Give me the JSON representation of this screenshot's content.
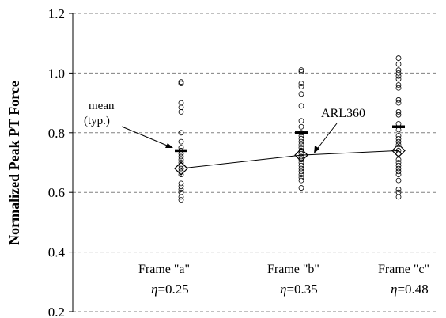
{
  "chart_data": {
    "type": "scatter",
    "ylabel": "Normalized Peak PT Force",
    "ylim": [
      0.2,
      1.2
    ],
    "yticks": [
      "0.2",
      "0.4",
      "0.6",
      "0.8",
      "1.0",
      "1.2"
    ],
    "grid": "horizontal-dashed",
    "groups": [
      {
        "label": "Frame \"a\"",
        "eta_symbol": "η",
        "eta_value": "=0.25",
        "points": [
          0.97,
          0.965,
          0.9,
          0.885,
          0.87,
          0.8,
          0.77,
          0.75,
          0.74,
          0.73,
          0.72,
          0.71,
          0.7,
          0.69,
          0.68,
          0.67,
          0.66,
          0.63,
          0.62,
          0.61,
          0.6,
          0.585,
          0.575
        ],
        "mean": 0.74,
        "arl360": 0.68
      },
      {
        "label": "Frame \"b\"",
        "eta_symbol": "η",
        "eta_value": "=0.35",
        "points": [
          1.01,
          1.005,
          0.965,
          0.955,
          0.93,
          0.89,
          0.84,
          0.82,
          0.8,
          0.79,
          0.78,
          0.77,
          0.76,
          0.75,
          0.74,
          0.73,
          0.72,
          0.71,
          0.7,
          0.69,
          0.68,
          0.67,
          0.66,
          0.65,
          0.64,
          0.615
        ],
        "mean": 0.8,
        "arl360": 0.725
      },
      {
        "label": "Frame \"c\"",
        "eta_symbol": "η",
        "eta_value": "=0.48",
        "points": [
          1.05,
          1.03,
          1.01,
          1.0,
          0.99,
          0.98,
          0.96,
          0.95,
          0.91,
          0.9,
          0.87,
          0.86,
          0.83,
          0.81,
          0.79,
          0.78,
          0.77,
          0.76,
          0.74,
          0.73,
          0.71,
          0.7,
          0.69,
          0.68,
          0.67,
          0.66,
          0.64,
          0.61,
          0.6,
          0.585
        ],
        "mean": 0.82,
        "arl360": 0.74
      }
    ],
    "annotations": {
      "mean_label_line1": "mean",
      "mean_label_line2": "(typ.)",
      "arl_label": "ARL360"
    }
  }
}
